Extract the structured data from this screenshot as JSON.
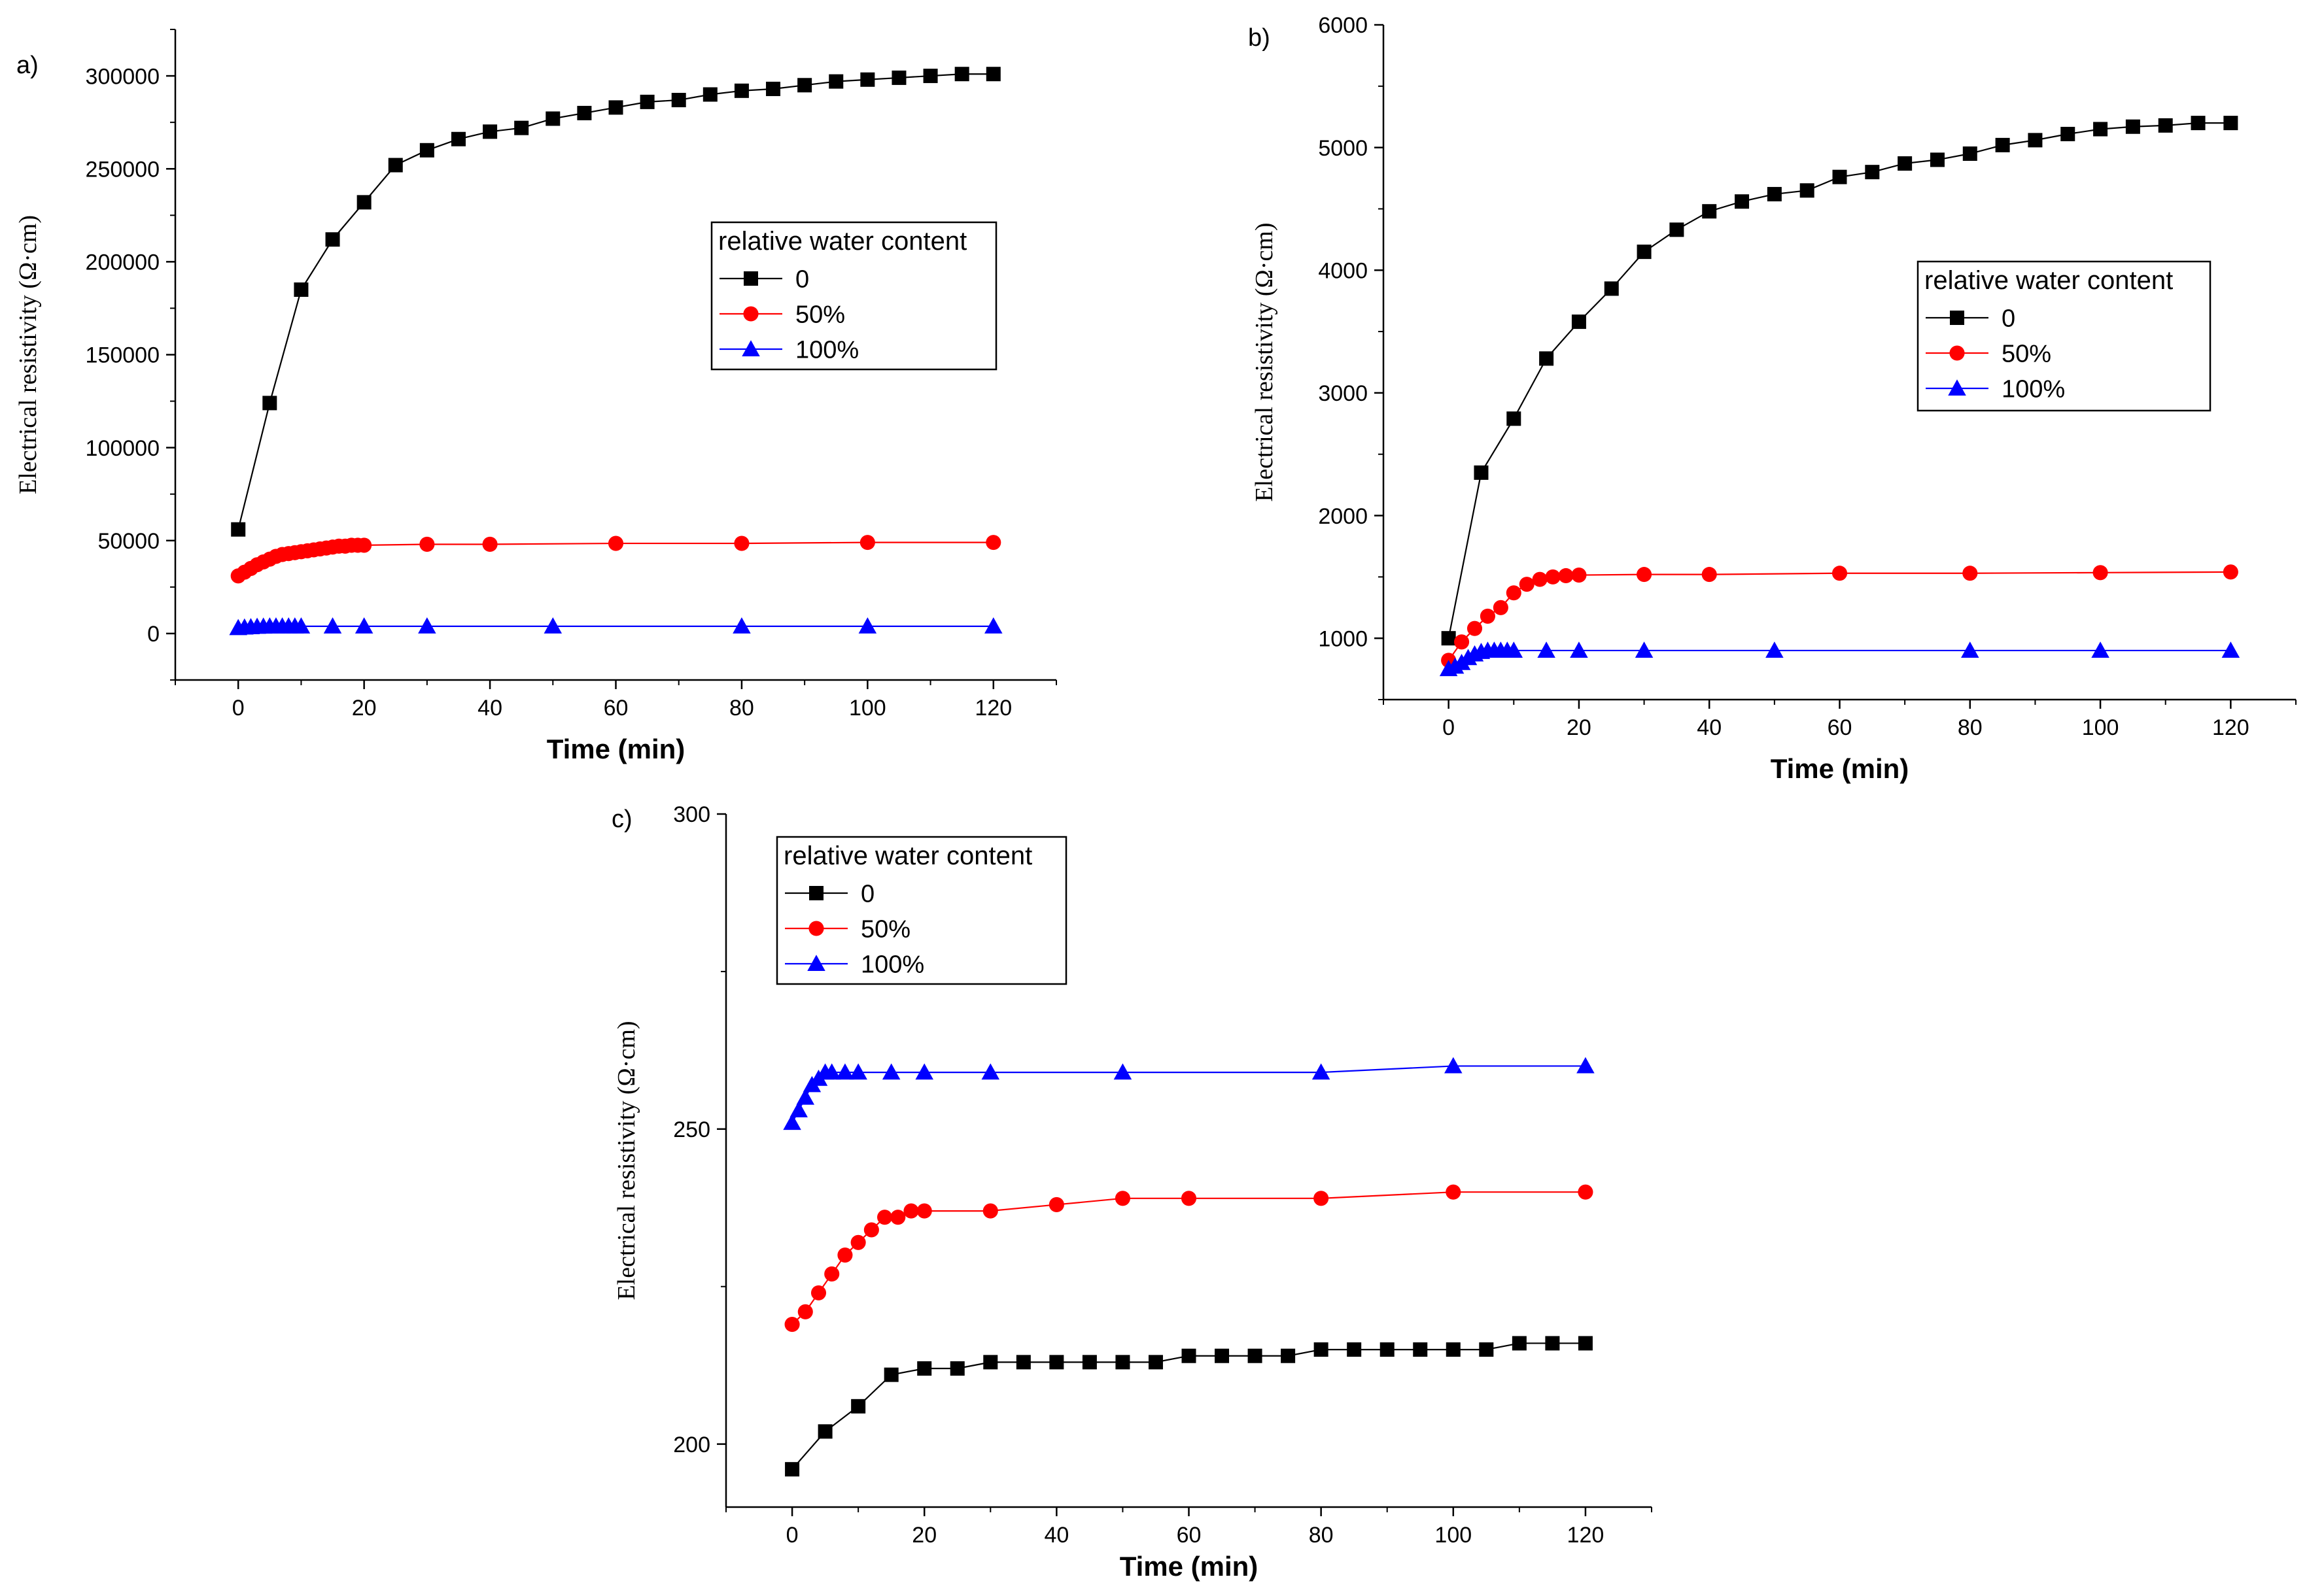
{
  "chart_data": [
    {
      "panel_label": "a)",
      "type": "line",
      "xlabel": "Time (min)",
      "ylabel": "Electrical resistivity (Ω·cm)",
      "xlim": [
        -10,
        130
      ],
      "ylim": [
        -25000,
        325000
      ],
      "xticks": [
        0,
        20,
        40,
        60,
        80,
        100,
        120
      ],
      "yticks": [
        0,
        50000,
        100000,
        150000,
        200000,
        250000,
        300000
      ],
      "legend": {
        "title": "relative water content",
        "position": "center-right"
      },
      "series": [
        {
          "name": "0",
          "color": "#000000",
          "marker": "square",
          "x": [
            0,
            5,
            10,
            15,
            20,
            25,
            30,
            35,
            40,
            45,
            50,
            55,
            60,
            65,
            70,
            75,
            80,
            85,
            90,
            95,
            100,
            105,
            110,
            115,
            120
          ],
          "y": [
            56000,
            124000,
            185000,
            212000,
            232000,
            252000,
            260000,
            266000,
            270000,
            272000,
            277000,
            280000,
            283000,
            286000,
            287000,
            290000,
            292000,
            293000,
            295000,
            297000,
            298000,
            299000,
            300000,
            301000,
            301000
          ]
        },
        {
          "name": "50%",
          "color": "#ff0000",
          "marker": "circle",
          "x": [
            0,
            1,
            2,
            3,
            4,
            5,
            6,
            7,
            8,
            9,
            10,
            11,
            12,
            13,
            14,
            15,
            16,
            17,
            18,
            19,
            20,
            30,
            40,
            60,
            80,
            100,
            120
          ],
          "y": [
            31000,
            33000,
            35000,
            37000,
            38500,
            40000,
            41500,
            42500,
            43000,
            43500,
            44000,
            44500,
            45000,
            45500,
            46000,
            46500,
            47000,
            47000,
            47500,
            47500,
            47500,
            48000,
            48000,
            48500,
            48500,
            49000,
            49000
          ]
        },
        {
          "name": "100%",
          "color": "#0000ff",
          "marker": "triangle",
          "x": [
            0,
            1,
            2,
            3,
            4,
            5,
            6,
            7,
            8,
            9,
            10,
            15,
            20,
            30,
            50,
            80,
            100,
            120
          ],
          "y": [
            3000,
            3300,
            3500,
            3700,
            3800,
            3900,
            3900,
            3900,
            3900,
            3900,
            3900,
            3900,
            3900,
            3900,
            3900,
            3900,
            3900,
            3900
          ]
        }
      ]
    },
    {
      "panel_label": "b)",
      "type": "line",
      "xlabel": "Time (min)",
      "ylabel": "Electrical resistivity (Ω·cm)",
      "xlim": [
        -10,
        130
      ],
      "ylim": [
        500,
        6000
      ],
      "xticks": [
        0,
        20,
        40,
        60,
        80,
        100,
        120
      ],
      "yticks": [
        1000,
        2000,
        3000,
        4000,
        5000,
        6000
      ],
      "legend": {
        "title": "relative water content",
        "position": "center-right"
      },
      "series": [
        {
          "name": "0",
          "color": "#000000",
          "marker": "square",
          "x": [
            0,
            5,
            10,
            15,
            20,
            25,
            30,
            35,
            40,
            45,
            50,
            55,
            60,
            65,
            70,
            75,
            80,
            85,
            90,
            95,
            100,
            105,
            110,
            115,
            120
          ],
          "y": [
            1000,
            2350,
            2790,
            3280,
            3580,
            3850,
            4150,
            4330,
            4480,
            4560,
            4620,
            4650,
            4760,
            4800,
            4870,
            4900,
            4950,
            5020,
            5060,
            5110,
            5150,
            5170,
            5180,
            5200,
            5200
          ]
        },
        {
          "name": "50%",
          "color": "#ff0000",
          "marker": "circle",
          "x": [
            0,
            2,
            4,
            6,
            8,
            10,
            12,
            14,
            16,
            18,
            20,
            30,
            40,
            60,
            80,
            100,
            120
          ],
          "y": [
            820,
            970,
            1080,
            1180,
            1250,
            1370,
            1440,
            1480,
            1500,
            1510,
            1515,
            1520,
            1520,
            1530,
            1530,
            1535,
            1540
          ]
        },
        {
          "name": "100%",
          "color": "#0000ff",
          "marker": "triangle",
          "x": [
            0,
            1,
            2,
            3,
            4,
            5,
            6,
            7,
            8,
            9,
            10,
            15,
            20,
            30,
            50,
            80,
            100,
            120
          ],
          "y": [
            750,
            770,
            800,
            840,
            870,
            890,
            900,
            900,
            900,
            900,
            900,
            900,
            900,
            900,
            900,
            900,
            900,
            900
          ]
        }
      ]
    },
    {
      "panel_label": "c)",
      "type": "line",
      "xlabel": "Time (min)",
      "ylabel": "Electrical resistivity (Ω·cm)",
      "xlim": [
        -10,
        130
      ],
      "ylim": [
        190,
        300
      ],
      "xticks": [
        0,
        20,
        40,
        60,
        80,
        100,
        120
      ],
      "yticks": [
        200,
        250,
        300
      ],
      "legend": {
        "title": "relative water content",
        "position": "top-left"
      },
      "series": [
        {
          "name": "0",
          "color": "#000000",
          "marker": "square",
          "x": [
            0,
            5,
            10,
            15,
            20,
            25,
            30,
            35,
            40,
            45,
            50,
            55,
            60,
            65,
            70,
            75,
            80,
            85,
            90,
            95,
            100,
            105,
            110,
            115,
            120
          ],
          "y": [
            196,
            202,
            206,
            211,
            212,
            212,
            213,
            213,
            213,
            213,
            213,
            213,
            214,
            214,
            214,
            214,
            215,
            215,
            215,
            215,
            215,
            215,
            216,
            216,
            216
          ]
        },
        {
          "name": "50%",
          "color": "#ff0000",
          "marker": "circle",
          "x": [
            0,
            2,
            4,
            6,
            8,
            10,
            12,
            14,
            16,
            18,
            20,
            30,
            40,
            50,
            60,
            80,
            100,
            120
          ],
          "y": [
            219,
            221,
            224,
            227,
            230,
            232,
            234,
            236,
            236,
            237,
            237,
            237,
            238,
            239,
            239,
            239,
            240,
            240
          ]
        },
        {
          "name": "100%",
          "color": "#0000ff",
          "marker": "triangle",
          "x": [
            0,
            1,
            2,
            3,
            4,
            5,
            6,
            8,
            10,
            15,
            20,
            30,
            50,
            80,
            100,
            120
          ],
          "y": [
            251,
            253,
            255,
            257,
            258,
            259,
            259,
            259,
            259,
            259,
            259,
            259,
            259,
            259,
            260,
            260
          ]
        }
      ]
    }
  ]
}
